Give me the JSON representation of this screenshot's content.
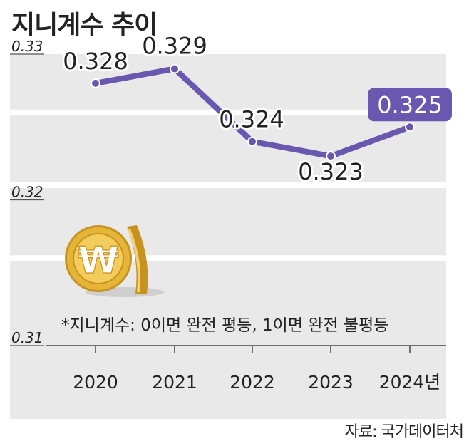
{
  "title": "지니계수 추이",
  "note": "*지니계수: 0이면 완전 평등, 1이면 완전 불평등",
  "source": "자료: 국가데이터처",
  "colors": {
    "panel": "#e9e9ea",
    "line": "#6a58b0",
    "highlight": "#6a58b0",
    "coin": "#e5b53a",
    "text": "#222222"
  },
  "chart_data": {
    "type": "line",
    "title": "지니계수 추이",
    "categories": [
      "2020",
      "2021",
      "2022",
      "2023",
      "2024년"
    ],
    "values": [
      0.328,
      0.329,
      0.324,
      0.323,
      0.325
    ],
    "value_labels": [
      "0.328",
      "0.329",
      "0.324",
      "0.323",
      "0.325"
    ],
    "y_ticks": [
      "0.33",
      "0.32",
      "0.31"
    ],
    "y_tick_values": [
      0.33,
      0.32,
      0.31
    ],
    "ylim": [
      0.31,
      0.33
    ],
    "highlight_index": 4,
    "grid": true
  }
}
